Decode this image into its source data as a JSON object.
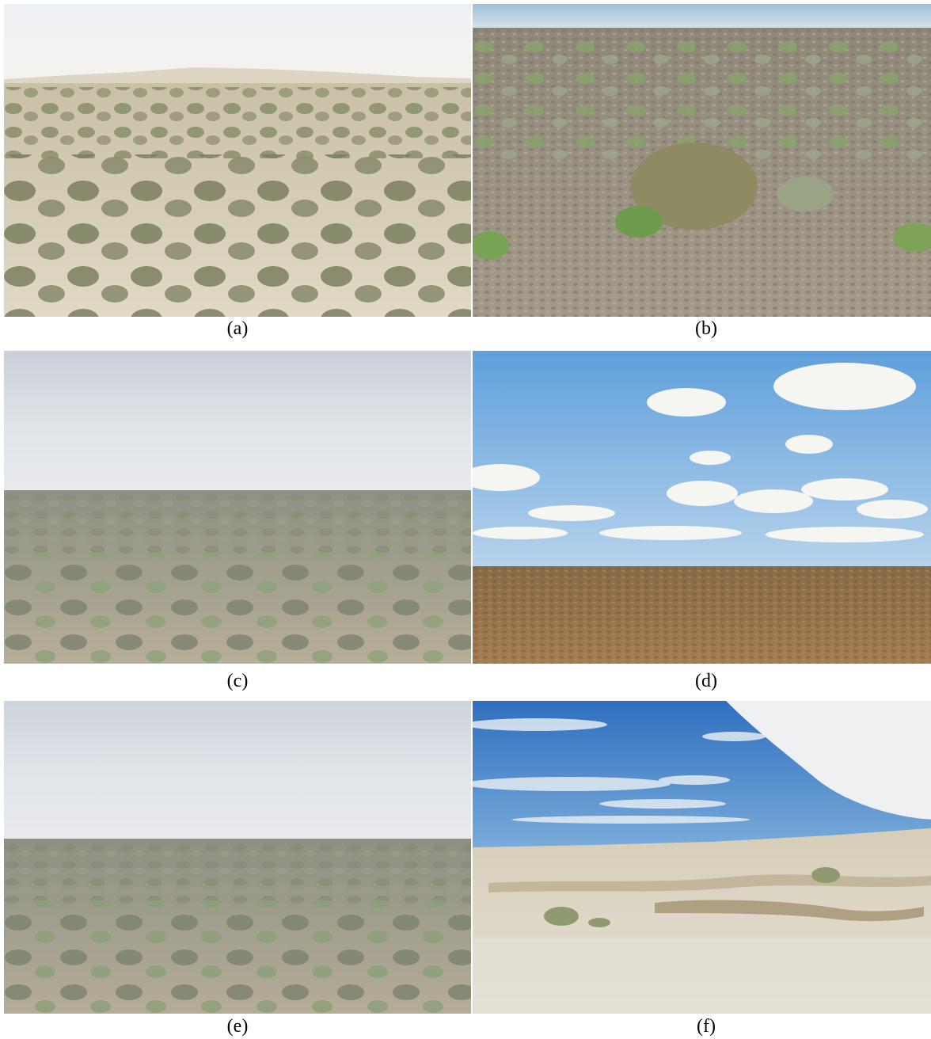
{
  "figure": {
    "panels": [
      {
        "id": "a",
        "caption": "(a)"
      },
      {
        "id": "b",
        "caption": "(b)"
      },
      {
        "id": "c",
        "caption": "(c)"
      },
      {
        "id": "d",
        "caption": "(d)"
      },
      {
        "id": "e",
        "caption": "(e)"
      },
      {
        "id": "f",
        "caption": "(f)"
      }
    ]
  }
}
